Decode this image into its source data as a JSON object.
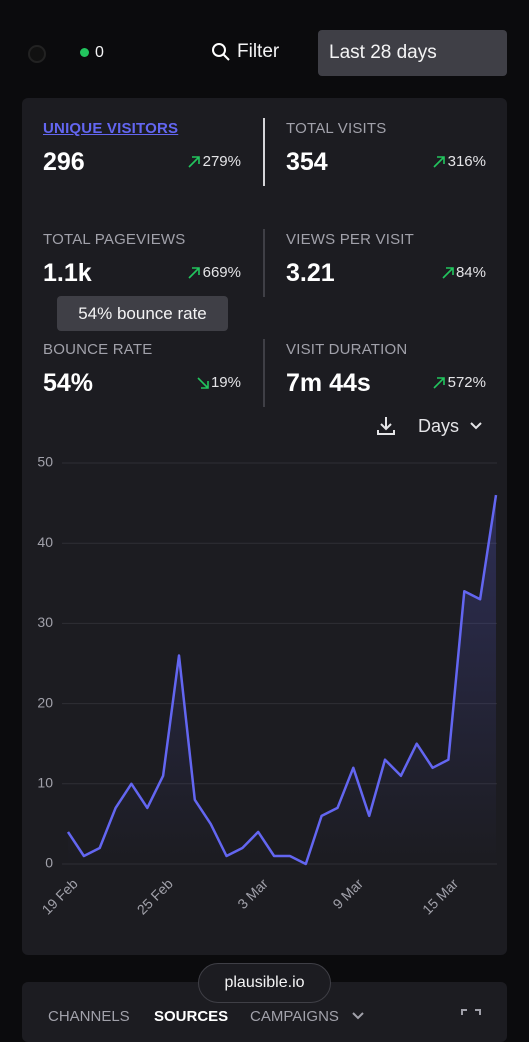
{
  "header": {
    "live_count": 0,
    "filter": "Filter",
    "period": "Last 28 days"
  },
  "stats": [
    {
      "label": "UNIQUE VISITORS",
      "value": "296",
      "change": "279%",
      "trend": "up"
    },
    {
      "label": "TOTAL VISITS",
      "value": "354",
      "change": "316%",
      "trend": "up"
    },
    {
      "label": "TOTAL PAGEVIEWS",
      "value": "1.1k",
      "change": "669%",
      "trend": "up"
    },
    {
      "label": "VIEWS PER VISIT",
      "value": "3.21",
      "change": "84%",
      "trend": "up"
    },
    {
      "label": "BOUNCE RATE",
      "value": "54%",
      "change": "19%",
      "trend": "down"
    },
    {
      "label": "VISIT DURATION",
      "value": "7m 44s",
      "change": "572%",
      "trend": "up"
    }
  ],
  "tooltip": "54% bounce rate",
  "interval": "Days",
  "chart_data": {
    "type": "line",
    "categories": [
      "19 Feb",
      null,
      null,
      null,
      null,
      null,
      "25 Feb",
      null,
      null,
      null,
      null,
      null,
      "3 Mar",
      null,
      null,
      null,
      null,
      null,
      "9 Mar",
      null,
      null,
      null,
      null,
      null,
      "15 Mar",
      null,
      null,
      null
    ],
    "values": [
      4,
      1,
      2,
      7,
      10,
      7,
      11,
      26,
      8,
      5,
      1,
      2,
      4,
      1,
      1,
      0,
      6,
      7,
      12,
      6,
      13,
      11,
      15,
      12,
      13,
      34,
      33,
      46
    ],
    "color": "#6366f1",
    "ylim": [
      0,
      50
    ],
    "yticks": [
      0,
      10,
      20,
      30,
      40,
      50
    ],
    "grid": true
  },
  "footer": {
    "badge": "plausible.io",
    "tabs": [
      "CHANNELS",
      "SOURCES",
      "CAMPAIGNS"
    ]
  }
}
